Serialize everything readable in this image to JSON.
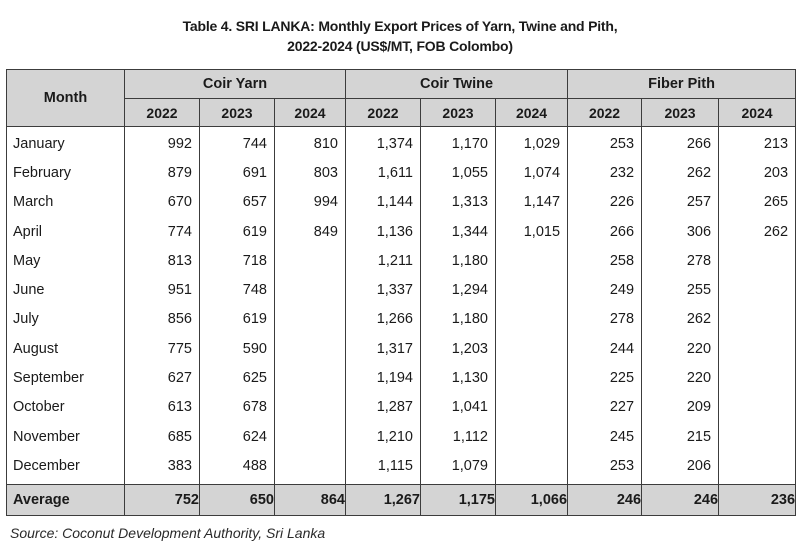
{
  "title": {
    "line1": "Table 4. SRI LANKA: Monthly Export Prices of Yarn, Twine and Pith,",
    "line2": "2022-2024 (US$/MT, FOB Colombo)"
  },
  "table": {
    "month_header": "Month",
    "groups": [
      "Coir Yarn",
      "Coir Twine",
      "Fiber Pith"
    ],
    "years": [
      "2022",
      "2023",
      "2024",
      "2022",
      "2023",
      "2024",
      "2022",
      "2023",
      "2024"
    ],
    "rows": [
      {
        "month": "January",
        "values": [
          "992",
          "744",
          "810",
          "1,374",
          "1,170",
          "1,029",
          "253",
          "266",
          "213"
        ]
      },
      {
        "month": "February",
        "values": [
          "879",
          "691",
          "803",
          "1,611",
          "1,055",
          "1,074",
          "232",
          "262",
          "203"
        ]
      },
      {
        "month": "March",
        "values": [
          "670",
          "657",
          "994",
          "1,144",
          "1,313",
          "1,147",
          "226",
          "257",
          "265"
        ]
      },
      {
        "month": "April",
        "values": [
          "774",
          "619",
          "849",
          "1,136",
          "1,344",
          "1,015",
          "266",
          "306",
          "262"
        ]
      },
      {
        "month": "May",
        "values": [
          "813",
          "718",
          "",
          "1,211",
          "1,180",
          "",
          "258",
          "278",
          ""
        ]
      },
      {
        "month": "June",
        "values": [
          "951",
          "748",
          "",
          "1,337",
          "1,294",
          "",
          "249",
          "255",
          ""
        ]
      },
      {
        "month": "July",
        "values": [
          "856",
          "619",
          "",
          "1,266",
          "1,180",
          "",
          "278",
          "262",
          ""
        ]
      },
      {
        "month": "August",
        "values": [
          "775",
          "590",
          "",
          "1,317",
          "1,203",
          "",
          "244",
          "220",
          ""
        ]
      },
      {
        "month": "September",
        "values": [
          "627",
          "625",
          "",
          "1,194",
          "1,130",
          "",
          "225",
          "220",
          ""
        ]
      },
      {
        "month": "October",
        "values": [
          "613",
          "678",
          "",
          "1,287",
          "1,041",
          "",
          "227",
          "209",
          ""
        ]
      },
      {
        "month": "November",
        "values": [
          "685",
          "624",
          "",
          "1,210",
          "1,112",
          "",
          "245",
          "215",
          ""
        ]
      },
      {
        "month": "December",
        "values": [
          "383",
          "488",
          "",
          "1,115",
          "1,079",
          "",
          "253",
          "206",
          ""
        ]
      }
    ],
    "average": {
      "label": "Average",
      "values": [
        "752",
        "650",
        "864",
        "1,267",
        "1,175",
        "1,066",
        "246",
        "246",
        "236"
      ]
    }
  },
  "source": "Source: Coconut Development Authority, Sri Lanka",
  "colors": {
    "header_bg": "#d4d4d4",
    "border": "#3c3c3c"
  }
}
